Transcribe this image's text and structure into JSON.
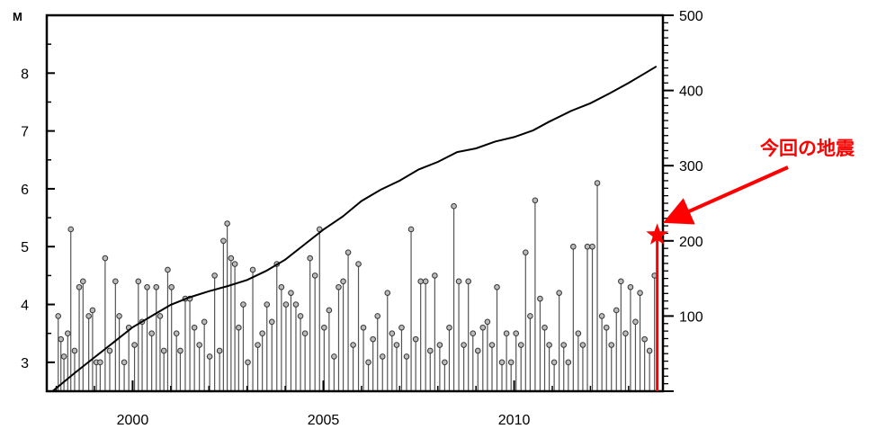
{
  "chart_data": {
    "type": "line",
    "description_left_axis": "magnitude",
    "left_axis": {
      "unit_label": "M",
      "range": [
        2.5,
        9.0
      ],
      "ticks": [
        3,
        4,
        5,
        6,
        7,
        8
      ]
    },
    "right_axis": {
      "range": [
        0,
        500
      ],
      "ticks": [
        100,
        200,
        300,
        400,
        500
      ]
    },
    "x_axis": {
      "range": [
        1997.75,
        2013.9
      ],
      "ticks": [
        2000,
        2005,
        2010
      ]
    },
    "series": [
      {
        "kind": "stem",
        "axis": "left",
        "color": "#555555",
        "points": [
          [
            1998.05,
            3.8
          ],
          [
            1998.12,
            3.4
          ],
          [
            1998.2,
            3.1
          ],
          [
            1998.3,
            3.5
          ],
          [
            1998.38,
            5.3
          ],
          [
            1998.48,
            3.2
          ],
          [
            1998.6,
            4.3
          ],
          [
            1998.7,
            4.4
          ],
          [
            1998.85,
            3.8
          ],
          [
            1998.95,
            3.9
          ],
          [
            1999.05,
            3.0
          ],
          [
            1999.15,
            3.0
          ],
          [
            1999.28,
            4.8
          ],
          [
            1999.4,
            3.2
          ],
          [
            1999.55,
            4.4
          ],
          [
            1999.65,
            3.8
          ],
          [
            1999.78,
            3.0
          ],
          [
            1999.9,
            3.6
          ],
          [
            2000.05,
            3.3
          ],
          [
            2000.15,
            4.4
          ],
          [
            2000.25,
            3.7
          ],
          [
            2000.38,
            4.3
          ],
          [
            2000.5,
            3.5
          ],
          [
            2000.62,
            4.3
          ],
          [
            2000.72,
            3.8
          ],
          [
            2000.82,
            3.2
          ],
          [
            2000.92,
            4.6
          ],
          [
            2001.02,
            4.3
          ],
          [
            2001.15,
            3.5
          ],
          [
            2001.25,
            3.2
          ],
          [
            2001.38,
            4.1
          ],
          [
            2001.5,
            4.1
          ],
          [
            2001.62,
            3.6
          ],
          [
            2001.75,
            3.3
          ],
          [
            2001.88,
            3.7
          ],
          [
            2002.02,
            3.1
          ],
          [
            2002.15,
            4.5
          ],
          [
            2002.28,
            3.2
          ],
          [
            2002.38,
            5.1
          ],
          [
            2002.48,
            5.4
          ],
          [
            2002.58,
            4.8
          ],
          [
            2002.68,
            4.7
          ],
          [
            2002.78,
            3.6
          ],
          [
            2002.9,
            4.0
          ],
          [
            2003.02,
            3.0
          ],
          [
            2003.15,
            4.6
          ],
          [
            2003.28,
            3.3
          ],
          [
            2003.4,
            3.5
          ],
          [
            2003.52,
            4.0
          ],
          [
            2003.65,
            3.7
          ],
          [
            2003.78,
            4.7
          ],
          [
            2003.9,
            4.3
          ],
          [
            2004.02,
            4.0
          ],
          [
            2004.15,
            4.2
          ],
          [
            2004.28,
            4.0
          ],
          [
            2004.4,
            3.8
          ],
          [
            2004.52,
            3.5
          ],
          [
            2004.65,
            4.8
          ],
          [
            2004.78,
            4.5
          ],
          [
            2004.9,
            5.3
          ],
          [
            2005.02,
            3.6
          ],
          [
            2005.15,
            3.9
          ],
          [
            2005.28,
            3.1
          ],
          [
            2005.4,
            4.3
          ],
          [
            2005.52,
            4.4
          ],
          [
            2005.65,
            4.9
          ],
          [
            2005.78,
            3.3
          ],
          [
            2005.92,
            4.7
          ],
          [
            2006.05,
            3.6
          ],
          [
            2006.18,
            3.0
          ],
          [
            2006.3,
            3.4
          ],
          [
            2006.42,
            3.8
          ],
          [
            2006.55,
            3.1
          ],
          [
            2006.68,
            4.2
          ],
          [
            2006.8,
            3.5
          ],
          [
            2006.92,
            3.3
          ],
          [
            2007.05,
            3.6
          ],
          [
            2007.18,
            3.1
          ],
          [
            2007.3,
            5.3
          ],
          [
            2007.42,
            3.4
          ],
          [
            2007.55,
            4.4
          ],
          [
            2007.68,
            4.4
          ],
          [
            2007.8,
            3.2
          ],
          [
            2007.92,
            4.5
          ],
          [
            2008.05,
            3.3
          ],
          [
            2008.18,
            3.0
          ],
          [
            2008.3,
            3.6
          ],
          [
            2008.42,
            5.7
          ],
          [
            2008.55,
            4.4
          ],
          [
            2008.68,
            3.3
          ],
          [
            2008.8,
            4.4
          ],
          [
            2008.92,
            3.5
          ],
          [
            2009.05,
            3.2
          ],
          [
            2009.18,
            3.6
          ],
          [
            2009.3,
            3.7
          ],
          [
            2009.42,
            3.3
          ],
          [
            2009.55,
            4.3
          ],
          [
            2009.68,
            3.0
          ],
          [
            2009.8,
            3.5
          ],
          [
            2009.92,
            3.0
          ],
          [
            2010.05,
            3.5
          ],
          [
            2010.18,
            3.3
          ],
          [
            2010.3,
            4.9
          ],
          [
            2010.42,
            3.8
          ],
          [
            2010.55,
            5.8
          ],
          [
            2010.68,
            4.1
          ],
          [
            2010.8,
            3.6
          ],
          [
            2010.92,
            3.3
          ],
          [
            2011.05,
            3.0
          ],
          [
            2011.18,
            4.2
          ],
          [
            2011.3,
            3.3
          ],
          [
            2011.42,
            3.0
          ],
          [
            2011.55,
            5.0
          ],
          [
            2011.68,
            3.5
          ],
          [
            2011.8,
            3.3
          ],
          [
            2011.92,
            5.0
          ],
          [
            2012.05,
            5.0
          ],
          [
            2012.18,
            6.1
          ],
          [
            2012.3,
            3.8
          ],
          [
            2012.42,
            3.6
          ],
          [
            2012.55,
            3.3
          ],
          [
            2012.68,
            3.9
          ],
          [
            2012.8,
            4.4
          ],
          [
            2012.92,
            3.5
          ],
          [
            2013.05,
            4.3
          ],
          [
            2013.18,
            3.7
          ],
          [
            2013.3,
            4.2
          ],
          [
            2013.42,
            3.4
          ],
          [
            2013.55,
            3.2
          ],
          [
            2013.68,
            4.5
          ]
        ]
      },
      {
        "kind": "cumulative-line",
        "axis": "right",
        "color": "#000000",
        "points": [
          [
            1997.9,
            0
          ],
          [
            1998.5,
            25
          ],
          [
            1999.0,
            45
          ],
          [
            1999.5,
            65
          ],
          [
            2000.0,
            85
          ],
          [
            2000.5,
            100
          ],
          [
            2001.0,
            115
          ],
          [
            2001.5,
            125
          ],
          [
            2002.0,
            133
          ],
          [
            2002.5,
            140
          ],
          [
            2003.0,
            148
          ],
          [
            2003.5,
            160
          ],
          [
            2004.0,
            175
          ],
          [
            2004.5,
            195
          ],
          [
            2005.0,
            215
          ],
          [
            2005.5,
            232
          ],
          [
            2006.0,
            253
          ],
          [
            2006.5,
            268
          ],
          [
            2007.0,
            280
          ],
          [
            2007.5,
            295
          ],
          [
            2008.0,
            305
          ],
          [
            2008.5,
            318
          ],
          [
            2009.0,
            323
          ],
          [
            2009.5,
            332
          ],
          [
            2010.0,
            338
          ],
          [
            2010.5,
            347
          ],
          [
            2010.9,
            358
          ],
          [
            2011.5,
            373
          ],
          [
            2012.0,
            383
          ],
          [
            2012.5,
            396
          ],
          [
            2013.0,
            410
          ],
          [
            2013.5,
            425
          ],
          [
            2013.73,
            432
          ]
        ]
      }
    ],
    "current_event": {
      "x": 2013.75,
      "magnitude": 5.2,
      "annotation": "今回の地震",
      "color": "#ff0000"
    },
    "title": "",
    "xlabel": "",
    "ylabel": "M",
    "grid": false
  }
}
